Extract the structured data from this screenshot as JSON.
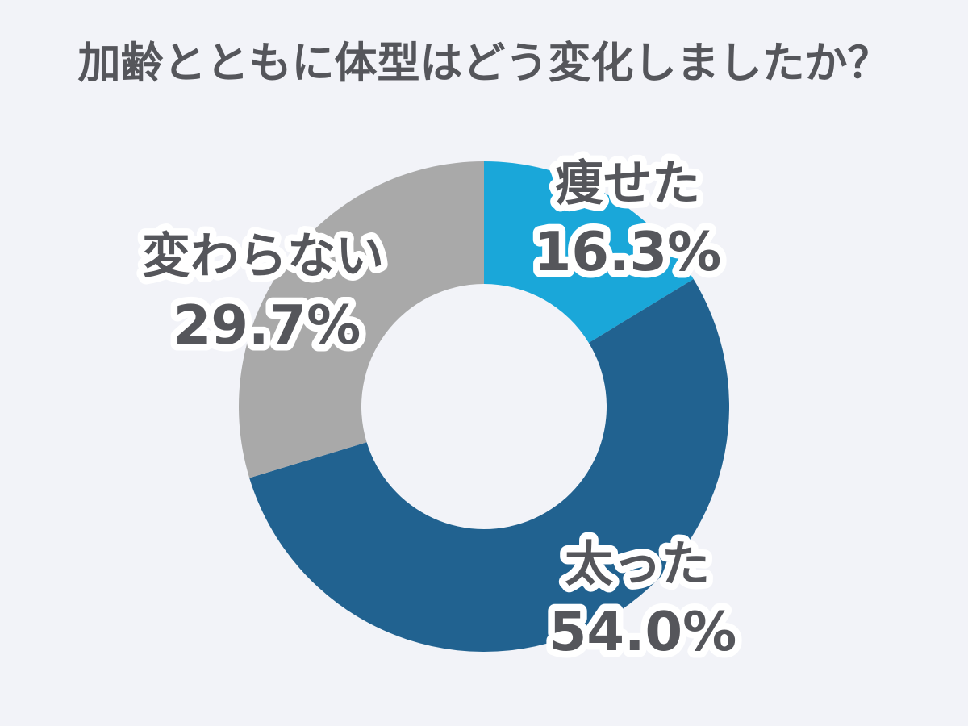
{
  "page": {
    "background_color": "#F2F3F8",
    "text_color": "#55565B"
  },
  "chart_data": {
    "type": "pie",
    "variant": "donut",
    "title": "加齢とともに体型はどう変化しましたか？",
    "start_angle_deg": 0,
    "direction": "clockwise",
    "inner_radius_ratio": 0.5,
    "legend": "none",
    "label_text_color": "#55565B",
    "label_outline_color": "#FFFFFF",
    "segments": [
      {
        "label": "痩せた",
        "value": 16.3,
        "pct_label": "16.3%",
        "color": "#1AA7D9"
      },
      {
        "label": "太った",
        "value": 54.0,
        "pct_label": "54.0%",
        "color": "#216290"
      },
      {
        "label": "変わらない",
        "value": 29.7,
        "pct_label": "29.7%",
        "color": "#A9A9A9"
      }
    ]
  }
}
